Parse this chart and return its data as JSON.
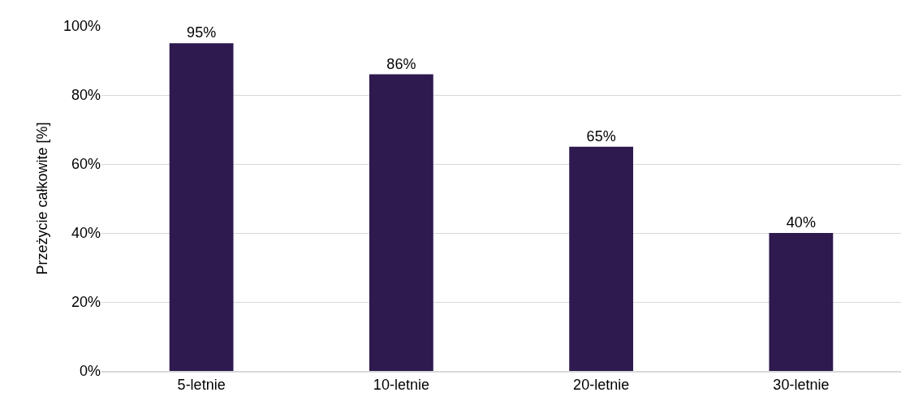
{
  "chart_data": {
    "type": "bar",
    "ylabel": "Przeżycie całkowite [%]",
    "categories": [
      "5-letnie",
      "10-letnie",
      "20-letnie",
      "30-letnie"
    ],
    "values": [
      95,
      86,
      65,
      40
    ],
    "value_labels": [
      "95%",
      "86%",
      "65%",
      "40%"
    ],
    "color": "#2e1a4f",
    "ylim": [
      0,
      100
    ],
    "yticks": [
      {
        "value": 0,
        "label": "0%"
      },
      {
        "value": 20,
        "label": "20%"
      },
      {
        "value": 40,
        "label": "40%"
      },
      {
        "value": 60,
        "label": "60%"
      },
      {
        "value": 80,
        "label": "80%"
      },
      {
        "value": 100,
        "label": "100%"
      }
    ],
    "grid": "y",
    "legend": false
  }
}
